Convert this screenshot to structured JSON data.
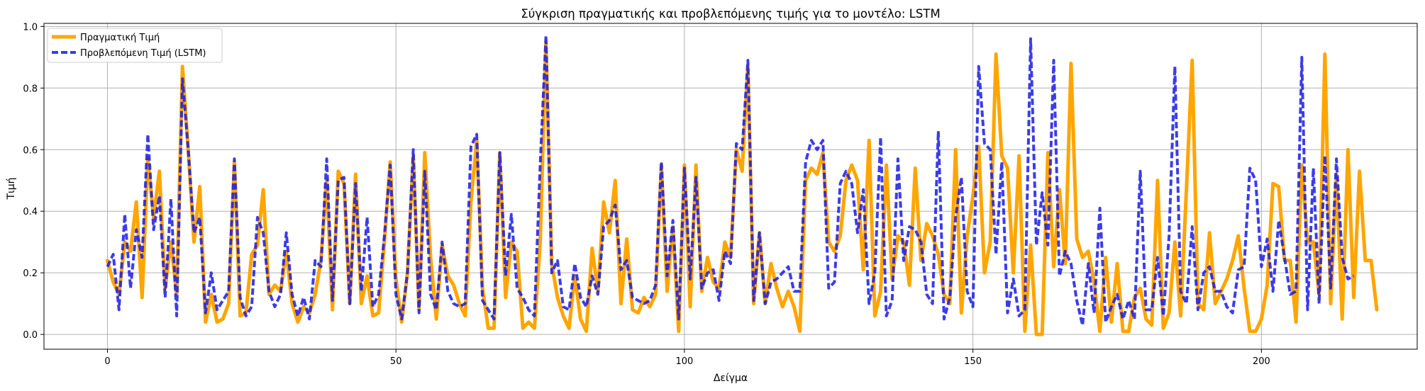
{
  "chart_data": {
    "type": "line",
    "title": "Σύγκριση πραγματικής και προβλεπόμενης τιμής για το μοντέλο: LSTM",
    "xlabel": "Δείγμα",
    "ylabel": "Τιμή",
    "xlim": [
      -11,
      227
    ],
    "ylim": [
      -0.048,
      1.01
    ],
    "xticks": [
      0,
      50,
      100,
      150,
      200
    ],
    "yticks": [
      0.0,
      0.2,
      0.4,
      0.6,
      0.8,
      1.0
    ],
    "xtick_labels": [
      "0",
      "50",
      "100",
      "150",
      "200"
    ],
    "ytick_labels": [
      "0.0",
      "0.2",
      "0.4",
      "0.6",
      "0.8",
      "1.0"
    ],
    "grid": true,
    "legend_position": "top-left",
    "series": [
      {
        "name": "Πραγματική Τιμή",
        "color": "#FFA500",
        "style": "solid",
        "values": [
          0.24,
          0.17,
          0.13,
          0.3,
          0.27,
          0.43,
          0.12,
          0.57,
          0.38,
          0.53,
          0.15,
          0.3,
          0.13,
          0.87,
          0.6,
          0.3,
          0.48,
          0.04,
          0.13,
          0.04,
          0.05,
          0.1,
          0.56,
          0.06,
          0.07,
          0.26,
          0.29,
          0.47,
          0.13,
          0.16,
          0.14,
          0.27,
          0.1,
          0.04,
          0.09,
          0.07,
          0.13,
          0.24,
          0.5,
          0.08,
          0.53,
          0.49,
          0.1,
          0.52,
          0.1,
          0.19,
          0.06,
          0.07,
          0.3,
          0.56,
          0.18,
          0.04,
          0.2,
          0.58,
          0.08,
          0.59,
          0.25,
          0.05,
          0.29,
          0.19,
          0.16,
          0.1,
          0.06,
          0.43,
          0.63,
          0.15,
          0.02,
          0.02,
          0.59,
          0.12,
          0.3,
          0.27,
          0.02,
          0.04,
          0.02,
          0.3,
          0.95,
          0.23,
          0.12,
          0.06,
          0.02,
          0.19,
          0.05,
          0.01,
          0.28,
          0.14,
          0.43,
          0.33,
          0.5,
          0.1,
          0.31,
          0.08,
          0.07,
          0.12,
          0.09,
          0.13,
          0.55,
          0.14,
          0.35,
          0.01,
          0.55,
          0.09,
          0.55,
          0.14,
          0.25,
          0.17,
          0.15,
          0.3,
          0.25,
          0.6,
          0.53,
          0.87,
          0.1,
          0.33,
          0.1,
          0.23,
          0.15,
          0.09,
          0.14,
          0.09,
          0.01,
          0.5,
          0.54,
          0.52,
          0.59,
          0.3,
          0.27,
          0.32,
          0.5,
          0.55,
          0.5,
          0.21,
          0.63,
          0.06,
          0.14,
          0.55,
          0.18,
          0.32,
          0.3,
          0.16,
          0.54,
          0.24,
          0.36,
          0.32,
          0.26,
          0.13,
          0.1,
          0.6,
          0.07,
          0.32,
          0.45,
          0.61,
          0.2,
          0.3,
          0.91,
          0.58,
          0.54,
          0.2,
          0.58,
          0.01,
          0.29,
          0.0,
          0.0,
          0.59,
          0.22,
          0.47,
          0.23,
          0.88,
          0.31,
          0.25,
          0.27,
          0.17,
          0.01,
          0.25,
          0.04,
          0.23,
          0.01,
          0.01,
          0.12,
          0.15,
          0.05,
          0.03,
          0.5,
          0.02,
          0.07,
          0.3,
          0.06,
          0.47,
          0.89,
          0.1,
          0.08,
          0.33,
          0.1,
          0.14,
          0.18,
          0.24,
          0.32,
          0.15,
          0.01,
          0.01,
          0.05,
          0.16,
          0.49,
          0.48,
          0.24,
          0.24,
          0.04,
          0.55,
          0.3,
          0.3,
          0.13,
          0.91,
          0.1,
          0.52,
          0.05,
          0.6,
          0.12,
          0.53,
          0.24,
          0.24,
          0.08
        ]
      },
      {
        "name": "Προβλεπόμενη Τιμή (LSTM)",
        "color": "#1A1AE6",
        "style": "dashed",
        "values": [
          0.22,
          0.26,
          0.08,
          0.39,
          0.15,
          0.34,
          0.25,
          0.65,
          0.34,
          0.45,
          0.12,
          0.44,
          0.06,
          0.83,
          0.6,
          0.33,
          0.38,
          0.07,
          0.2,
          0.08,
          0.11,
          0.14,
          0.57,
          0.12,
          0.06,
          0.09,
          0.38,
          0.33,
          0.14,
          0.09,
          0.13,
          0.33,
          0.13,
          0.06,
          0.12,
          0.05,
          0.24,
          0.22,
          0.57,
          0.11,
          0.5,
          0.51,
          0.1,
          0.49,
          0.14,
          0.38,
          0.09,
          0.13,
          0.32,
          0.55,
          0.13,
          0.05,
          0.2,
          0.6,
          0.07,
          0.53,
          0.13,
          0.08,
          0.3,
          0.14,
          0.1,
          0.09,
          0.1,
          0.61,
          0.65,
          0.11,
          0.08,
          0.05,
          0.59,
          0.19,
          0.39,
          0.15,
          0.12,
          0.08,
          0.06,
          0.55,
          0.97,
          0.2,
          0.24,
          0.09,
          0.08,
          0.23,
          0.12,
          0.09,
          0.19,
          0.13,
          0.35,
          0.37,
          0.42,
          0.21,
          0.24,
          0.12,
          0.11,
          0.1,
          0.11,
          0.16,
          0.56,
          0.19,
          0.37,
          0.05,
          0.54,
          0.18,
          0.51,
          0.15,
          0.2,
          0.21,
          0.11,
          0.27,
          0.23,
          0.62,
          0.6,
          0.89,
          0.11,
          0.33,
          0.1,
          0.17,
          0.18,
          0.2,
          0.22,
          0.14,
          0.14,
          0.56,
          0.63,
          0.6,
          0.63,
          0.15,
          0.17,
          0.49,
          0.53,
          0.49,
          0.33,
          0.47,
          0.1,
          0.2,
          0.64,
          0.06,
          0.11,
          0.57,
          0.24,
          0.35,
          0.34,
          0.3,
          0.13,
          0.1,
          0.66,
          0.05,
          0.12,
          0.38,
          0.51,
          0.14,
          0.09,
          0.87,
          0.62,
          0.6,
          0.26,
          0.56,
          0.07,
          0.18,
          0.06,
          0.08,
          0.96,
          0.29,
          0.46,
          0.29,
          0.89,
          0.19,
          0.27,
          0.23,
          0.11,
          0.03,
          0.23,
          0.07,
          0.41,
          0.04,
          0.09,
          0.13,
          0.05,
          0.11,
          0.05,
          0.53,
          0.08,
          0.08,
          0.25,
          0.06,
          0.32,
          0.87,
          0.14,
          0.1,
          0.35,
          0.08,
          0.2,
          0.22,
          0.14,
          0.14,
          0.09,
          0.07,
          0.21,
          0.22,
          0.54,
          0.5,
          0.22,
          0.31,
          0.14,
          0.37,
          0.25,
          0.13,
          0.14,
          0.9,
          0.08,
          0.54,
          0.1,
          0.58,
          0.15,
          0.57,
          0.25,
          0.18,
          0.19
        ]
      }
    ]
  }
}
